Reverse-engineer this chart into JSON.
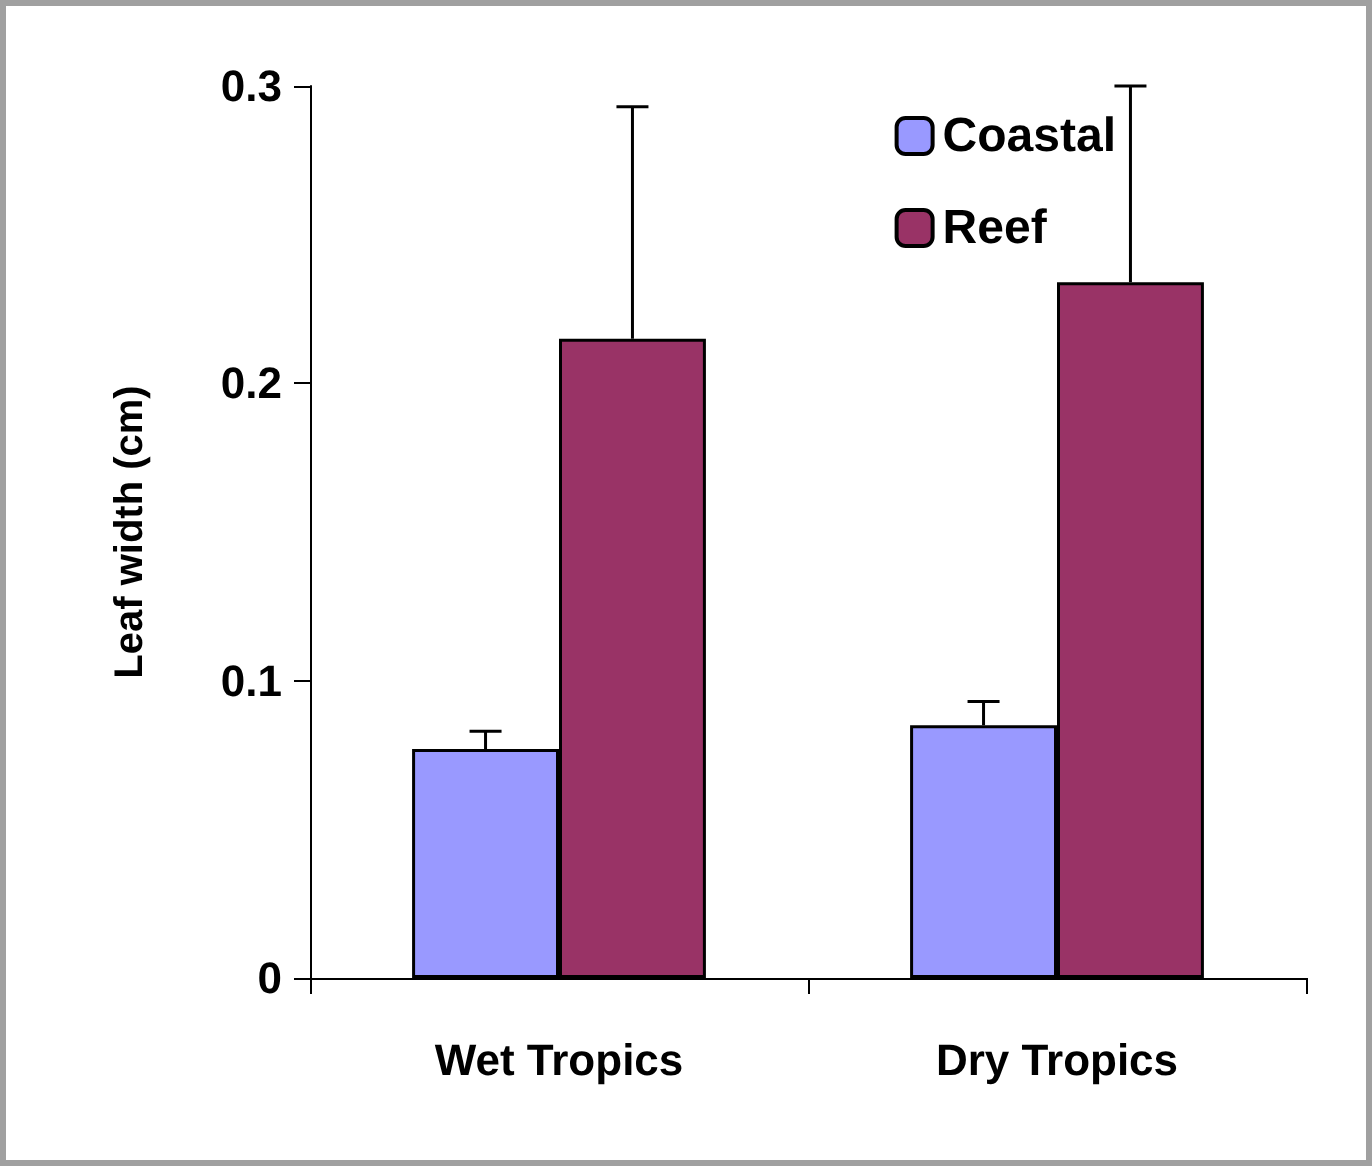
{
  "chart_data": {
    "type": "bar",
    "ylabel": "Leaf width (cm)",
    "categories": [
      "Wet Tropics",
      "Dry Tropics"
    ],
    "series": [
      {
        "name": "Coastal",
        "color": "#9999ff",
        "values": [
          0.077,
          0.085
        ],
        "errors": [
          [
            0.077,
            0.083
          ],
          [
            0.085,
            0.093
          ]
        ]
      },
      {
        "name": "Reef",
        "color": "#993366",
        "values": [
          0.215,
          0.234
        ],
        "errors": [
          [
            0.215,
            0.293
          ],
          [
            0.234,
            0.3
          ]
        ]
      }
    ],
    "ylim": [
      0,
      0.3
    ],
    "yticks": [
      0,
      0.1,
      0.2,
      0.3
    ],
    "grid": false,
    "legend": "top right"
  }
}
